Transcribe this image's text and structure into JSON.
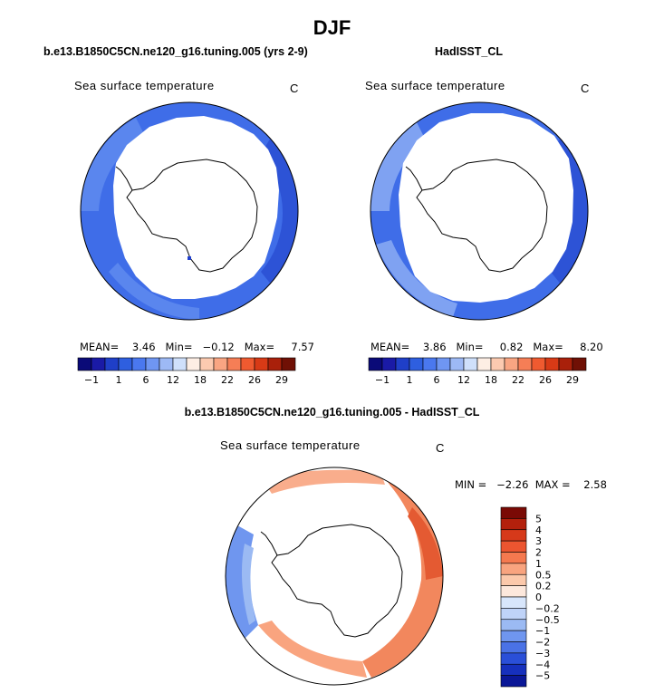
{
  "page_title": "DJF",
  "chart_data": [
    {
      "type": "heatmap",
      "projection": "south polar stereographic",
      "panel_title": "b.e13.B1850C5CN.ne120_g16.tuning.005 (yrs 2-9)",
      "field_label": "Sea surface temperature",
      "units": "C",
      "stats": {
        "mean_label": "MEAN=",
        "mean": "3.46",
        "min_label": "Min=",
        "min": "-0.12",
        "max_label": "Max=",
        "max": "7.57"
      },
      "stats_text": "MEAN=    3.46   Min=   −0.12   Max=     7.57",
      "colorbar": {
        "orientation": "horizontal",
        "levels": [
          -1,
          1,
          6,
          12,
          18,
          22,
          26,
          29
        ],
        "tick_labels": [
          "−1",
          "1",
          "6",
          "12",
          "18",
          "22",
          "26",
          "29"
        ],
        "colors": [
          "#0a0a78",
          "#1a1aa6",
          "#1f3fc8",
          "#2e5fe0",
          "#4a78ef",
          "#6f96f2",
          "#9db9f5",
          "#cfe0fb",
          "#fdeee4",
          "#fccab0",
          "#f9a582",
          "#f57e56",
          "#ef5a30",
          "#d83a16",
          "#a9200a",
          "#701005"
        ]
      }
    },
    {
      "type": "heatmap",
      "projection": "south polar stereographic",
      "panel_title": "HadISST_CL",
      "field_label": "Sea surface temperature",
      "units": "C",
      "stats": {
        "mean_label": "MEAN=",
        "mean": "3.86",
        "min_label": "Min=",
        "min": "0.82",
        "max_label": "Max=",
        "max": "8.20"
      },
      "stats_text": "MEAN=    3.86   Min=     0.82   Max=     8.20",
      "colorbar": {
        "orientation": "horizontal",
        "levels": [
          -1,
          1,
          6,
          12,
          18,
          22,
          26,
          29
        ],
        "tick_labels": [
          "−1",
          "1",
          "6",
          "12",
          "18",
          "22",
          "26",
          "29"
        ],
        "colors": [
          "#0a0a78",
          "#1a1aa6",
          "#1f3fc8",
          "#2e5fe0",
          "#4a78ef",
          "#6f96f2",
          "#9db9f5",
          "#cfe0fb",
          "#fdeee4",
          "#fccab0",
          "#f9a582",
          "#f57e56",
          "#ef5a30",
          "#d83a16",
          "#a9200a",
          "#701005"
        ]
      }
    },
    {
      "type": "heatmap",
      "projection": "south polar stereographic",
      "panel_title": "b.e13.B1850C5CN.ne120_g16.tuning.005 - HadISST_CL",
      "field_label": "Sea surface temperature",
      "units": "C",
      "stats": {
        "min_label": "MIN =",
        "min": "-2.26",
        "max_label": "MAX =",
        "max": "2.58"
      },
      "stats_text": "MIN =   −2.26  MAX =    2.58",
      "colorbar": {
        "orientation": "vertical",
        "levels": [
          5,
          4,
          3,
          2,
          1,
          0.5,
          0.2,
          0,
          -0.2,
          -0.5,
          -1,
          -2,
          -3,
          -4,
          -5
        ],
        "tick_labels": [
          "5",
          "4",
          "3",
          "2",
          "1",
          "0.5",
          "0.2",
          "0",
          "−0.2",
          "−0.5",
          "−1",
          "−2",
          "−3",
          "−4",
          "−5"
        ],
        "colors": [
          "#7a0a05",
          "#b3200c",
          "#d6391a",
          "#ec5530",
          "#f5794f",
          "#f9a47f",
          "#fcc9ab",
          "#fde8dc",
          "#d8e6fb",
          "#bfd3f8",
          "#9bbaf3",
          "#6f96ef",
          "#4a72e6",
          "#2a4fd8",
          "#1630bd",
          "#0a1797"
        ]
      }
    }
  ]
}
